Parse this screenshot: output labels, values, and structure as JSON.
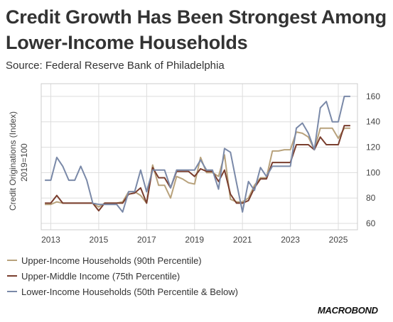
{
  "header": {
    "title": "Credit Growth Has Been Strongest Among Lower-Income Households",
    "subtitle": "Source: Federal Reserve Bank of Philadelphia"
  },
  "logo": "MACROBOND",
  "chart_data": {
    "type": "line",
    "ylabel_line1": "Credit Originations (Index)",
    "ylabel_line2": "2019=100",
    "xlim": [
      2012.6,
      2025.8
    ],
    "ylim": [
      55,
      170
    ],
    "x_ticks": [
      "2013",
      "2015",
      "2017",
      "2019",
      "2021",
      "2023",
      "2025"
    ],
    "y_ticks": [
      "60",
      "80",
      "100",
      "120",
      "140",
      "160"
    ],
    "grid": true,
    "legend_position": "bottom-left",
    "series": [
      {
        "name": "Upper-Income Households (90th Percentile)",
        "color": "#b8a27c",
        "points": [
          [
            2012.75,
            75
          ],
          [
            2013.0,
            75
          ],
          [
            2013.25,
            77
          ],
          [
            2013.5,
            76
          ],
          [
            2013.75,
            76
          ],
          [
            2014.0,
            76
          ],
          [
            2014.25,
            76
          ],
          [
            2014.5,
            76
          ],
          [
            2014.75,
            76
          ],
          [
            2015.0,
            73
          ],
          [
            2015.25,
            76
          ],
          [
            2015.5,
            76
          ],
          [
            2015.75,
            76
          ],
          [
            2016.0,
            77
          ],
          [
            2016.25,
            85
          ],
          [
            2016.5,
            85
          ],
          [
            2016.75,
            82
          ],
          [
            2017.0,
            76
          ],
          [
            2017.25,
            106
          ],
          [
            2017.5,
            90
          ],
          [
            2017.75,
            90
          ],
          [
            2018.0,
            80
          ],
          [
            2018.25,
            97
          ],
          [
            2018.5,
            95
          ],
          [
            2018.75,
            92
          ],
          [
            2019.0,
            91
          ],
          [
            2019.25,
            112
          ],
          [
            2019.5,
            100
          ],
          [
            2019.75,
            100
          ],
          [
            2020.0,
            97
          ],
          [
            2020.25,
            114
          ],
          [
            2020.5,
            79
          ],
          [
            2020.75,
            77
          ],
          [
            2021.0,
            77
          ],
          [
            2021.25,
            80
          ],
          [
            2021.5,
            90
          ],
          [
            2021.75,
            96
          ],
          [
            2022.0,
            96
          ],
          [
            2022.25,
            117
          ],
          [
            2022.5,
            117
          ],
          [
            2022.75,
            118
          ],
          [
            2023.0,
            118
          ],
          [
            2023.25,
            132
          ],
          [
            2023.5,
            131
          ],
          [
            2023.75,
            128
          ],
          [
            2024.0,
            118
          ],
          [
            2024.25,
            135
          ],
          [
            2024.5,
            135
          ],
          [
            2024.75,
            135
          ],
          [
            2025.0,
            127
          ],
          [
            2025.25,
            135
          ],
          [
            2025.5,
            135
          ]
        ]
      },
      {
        "name": "Upper-Middle Income (75th Percentile)",
        "color": "#7a3e2e",
        "points": [
          [
            2012.75,
            76
          ],
          [
            2013.0,
            76
          ],
          [
            2013.25,
            82
          ],
          [
            2013.5,
            76
          ],
          [
            2013.75,
            76
          ],
          [
            2014.0,
            76
          ],
          [
            2014.25,
            76
          ],
          [
            2014.5,
            76
          ],
          [
            2014.75,
            76
          ],
          [
            2015.0,
            70
          ],
          [
            2015.25,
            76
          ],
          [
            2015.5,
            76
          ],
          [
            2015.75,
            76
          ],
          [
            2016.0,
            76
          ],
          [
            2016.25,
            83
          ],
          [
            2016.5,
            84
          ],
          [
            2016.75,
            88
          ],
          [
            2017.0,
            76
          ],
          [
            2017.25,
            104
          ],
          [
            2017.5,
            96
          ],
          [
            2017.75,
            96
          ],
          [
            2018.0,
            88
          ],
          [
            2018.25,
            101
          ],
          [
            2018.5,
            101
          ],
          [
            2018.75,
            101
          ],
          [
            2019.0,
            97
          ],
          [
            2019.25,
            103
          ],
          [
            2019.5,
            101
          ],
          [
            2019.75,
            101
          ],
          [
            2020.0,
            93
          ],
          [
            2020.25,
            102
          ],
          [
            2020.5,
            83
          ],
          [
            2020.75,
            76
          ],
          [
            2021.0,
            76
          ],
          [
            2021.25,
            78
          ],
          [
            2021.5,
            88
          ],
          [
            2021.75,
            95
          ],
          [
            2022.0,
            95
          ],
          [
            2022.25,
            108
          ],
          [
            2022.5,
            108
          ],
          [
            2022.75,
            108
          ],
          [
            2023.0,
            108
          ],
          [
            2023.25,
            122
          ],
          [
            2023.5,
            122
          ],
          [
            2023.75,
            122
          ],
          [
            2024.0,
            118
          ],
          [
            2024.25,
            128
          ],
          [
            2024.5,
            122
          ],
          [
            2024.75,
            122
          ],
          [
            2025.0,
            122
          ],
          [
            2025.25,
            137
          ],
          [
            2025.5,
            137
          ]
        ]
      },
      {
        "name": "Lower-Income Households (50th Percentile & Below)",
        "color": "#7a89a8",
        "points": [
          [
            2012.75,
            94
          ],
          [
            2013.0,
            94
          ],
          [
            2013.25,
            112
          ],
          [
            2013.5,
            105
          ],
          [
            2013.75,
            94
          ],
          [
            2014.0,
            94
          ],
          [
            2014.25,
            105
          ],
          [
            2014.5,
            94
          ],
          [
            2014.75,
            76
          ],
          [
            2015.0,
            75
          ],
          [
            2015.25,
            75
          ],
          [
            2015.5,
            75
          ],
          [
            2015.75,
            75
          ],
          [
            2016.0,
            69
          ],
          [
            2016.25,
            85
          ],
          [
            2016.5,
            85
          ],
          [
            2016.75,
            102
          ],
          [
            2017.0,
            85
          ],
          [
            2017.25,
            102
          ],
          [
            2017.5,
            102
          ],
          [
            2017.75,
            102
          ],
          [
            2018.0,
            88
          ],
          [
            2018.25,
            102
          ],
          [
            2018.5,
            102
          ],
          [
            2018.75,
            102
          ],
          [
            2019.0,
            102
          ],
          [
            2019.25,
            110
          ],
          [
            2019.5,
            102
          ],
          [
            2019.75,
            102
          ],
          [
            2020.0,
            87
          ],
          [
            2020.25,
            119
          ],
          [
            2020.5,
            116
          ],
          [
            2020.75,
            92
          ],
          [
            2021.0,
            69
          ],
          [
            2021.25,
            93
          ],
          [
            2021.5,
            86
          ],
          [
            2021.75,
            104
          ],
          [
            2022.0,
            97
          ],
          [
            2022.25,
            105
          ],
          [
            2022.5,
            105
          ],
          [
            2022.75,
            105
          ],
          [
            2023.0,
            105
          ],
          [
            2023.25,
            135
          ],
          [
            2023.5,
            139
          ],
          [
            2023.75,
            131
          ],
          [
            2024.0,
            118
          ],
          [
            2024.25,
            151
          ],
          [
            2024.5,
            156
          ],
          [
            2024.75,
            140
          ],
          [
            2025.0,
            140
          ],
          [
            2025.25,
            160
          ],
          [
            2025.5,
            160
          ]
        ]
      }
    ]
  }
}
